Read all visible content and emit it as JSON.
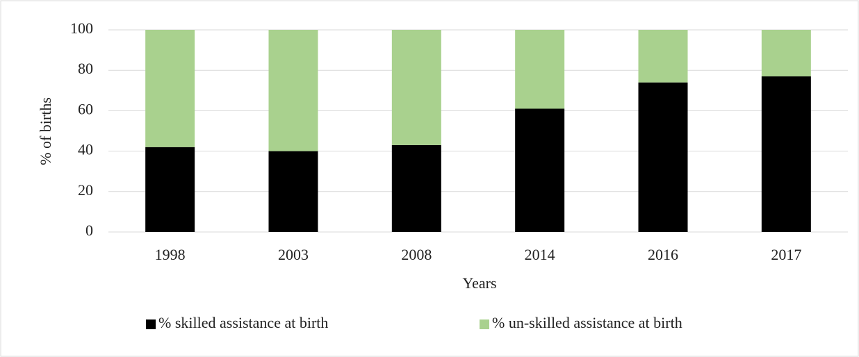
{
  "chart_data": {
    "type": "stacked_bar",
    "x_label": "Years",
    "y_label": "% of births",
    "categories": [
      "1998",
      "2003",
      "2008",
      "2014",
      "2016",
      "2017"
    ],
    "series": [
      {
        "name": "% skilled assistance at birth",
        "color": "#000000",
        "values": [
          42,
          40,
          43,
          61,
          74,
          77
        ]
      },
      {
        "name": "% un-skilled assistance at birth",
        "color": "#a9d18e",
        "values": [
          58,
          60,
          57,
          39,
          26,
          23
        ]
      }
    ],
    "ylim": [
      0,
      100
    ],
    "yticks": [
      0,
      20,
      40,
      60,
      80,
      100
    ],
    "grid": true,
    "legend": "bottom"
  }
}
